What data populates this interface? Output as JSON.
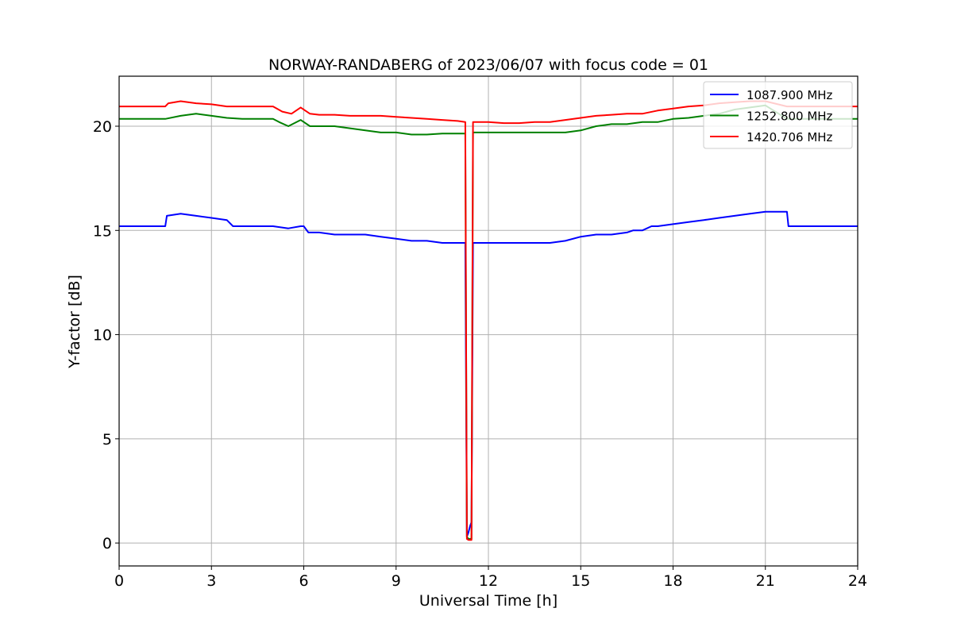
{
  "chart_data": {
    "type": "line",
    "title": "NORWAY-RANDABERG of 2023/06/07 with focus code = 01",
    "xlabel": "Universal Time [h]",
    "ylabel": "Y-factor [dB]",
    "xlim": [
      0,
      24
    ],
    "ylim": [
      -1.1,
      22.4
    ],
    "xticks": [
      0,
      3,
      6,
      9,
      12,
      15,
      18,
      21,
      24
    ],
    "yticks": [
      0,
      5,
      10,
      15,
      20
    ],
    "grid": true,
    "legend_position": "top-right",
    "series": [
      {
        "name": "1087.900 MHz",
        "color": "#0000ff",
        "x": [
          0,
          1.5,
          1.55,
          2.0,
          2.5,
          3.0,
          3.5,
          3.7,
          4.5,
          5.0,
          5.5,
          5.9,
          6.0,
          6.15,
          6.5,
          7.0,
          7.5,
          8.0,
          8.5,
          9.0,
          9.5,
          10.0,
          10.5,
          11.0,
          11.25,
          11.3,
          11.35,
          11.4,
          11.45,
          11.5,
          11.55,
          12.0,
          12.5,
          13.0,
          13.5,
          14.0,
          14.5,
          15.0,
          15.5,
          16.0,
          16.5,
          16.7,
          17.0,
          17.3,
          17.5,
          18.0,
          18.5,
          19.0,
          19.5,
          20.0,
          20.5,
          21.0,
          21.5,
          21.7,
          21.75,
          22.0,
          24
        ],
        "y": [
          15.2,
          15.2,
          15.7,
          15.8,
          15.7,
          15.6,
          15.5,
          15.2,
          15.2,
          15.2,
          15.1,
          15.2,
          15.2,
          14.9,
          14.9,
          14.8,
          14.8,
          14.8,
          14.7,
          14.6,
          14.5,
          14.5,
          14.4,
          14.4,
          14.4,
          0.3,
          0.5,
          0.8,
          1.0,
          14.4,
          14.4,
          14.4,
          14.4,
          14.4,
          14.4,
          14.4,
          14.5,
          14.7,
          14.8,
          14.8,
          14.9,
          15.0,
          15.0,
          15.2,
          15.2,
          15.3,
          15.4,
          15.5,
          15.6,
          15.7,
          15.8,
          15.9,
          15.9,
          15.9,
          15.2,
          15.2,
          15.2
        ]
      },
      {
        "name": "1252.800 MHz",
        "color": "#008000",
        "x": [
          0,
          1.5,
          2.0,
          2.5,
          3.0,
          3.5,
          4.0,
          5.0,
          5.2,
          5.5,
          5.9,
          6.2,
          6.5,
          7.0,
          7.5,
          8.0,
          8.5,
          9.0,
          9.5,
          10.0,
          10.5,
          11.0,
          11.25,
          11.3,
          11.35,
          11.45,
          11.5,
          11.55,
          12.0,
          12.5,
          13.0,
          13.5,
          14.0,
          14.5,
          15.0,
          15.5,
          16.0,
          16.5,
          17.0,
          17.5,
          18.0,
          18.5,
          19.0,
          19.5,
          20.0,
          20.5,
          21.0,
          21.7,
          22.0,
          24
        ],
        "y": [
          20.35,
          20.35,
          20.5,
          20.6,
          20.5,
          20.4,
          20.35,
          20.35,
          20.2,
          20.0,
          20.3,
          20.0,
          20.0,
          20.0,
          19.9,
          19.8,
          19.7,
          19.7,
          19.6,
          19.6,
          19.65,
          19.65,
          19.65,
          0.3,
          0.2,
          0.2,
          19.7,
          19.7,
          19.7,
          19.7,
          19.7,
          19.7,
          19.7,
          19.7,
          19.8,
          20.0,
          20.1,
          20.1,
          20.2,
          20.2,
          20.35,
          20.4,
          20.5,
          20.6,
          20.8,
          20.9,
          21.0,
          20.35,
          20.35,
          20.35
        ]
      },
      {
        "name": "1420.706 MHz",
        "color": "#ff0000",
        "x": [
          0,
          1.5,
          1.6,
          2.0,
          2.5,
          3.0,
          3.5,
          4.0,
          5.0,
          5.3,
          5.6,
          5.9,
          6.2,
          6.5,
          7.0,
          7.5,
          8.0,
          8.5,
          9.0,
          9.5,
          10.0,
          10.5,
          11.0,
          11.25,
          11.3,
          11.35,
          11.45,
          11.5,
          11.55,
          12.0,
          12.5,
          13.0,
          13.5,
          14.0,
          14.5,
          15.0,
          15.5,
          16.0,
          16.5,
          17.0,
          17.5,
          18.0,
          18.5,
          19.0,
          19.5,
          20.0,
          20.5,
          21.0,
          21.7,
          22.0,
          24
        ],
        "y": [
          20.95,
          20.95,
          21.1,
          21.2,
          21.1,
          21.05,
          20.95,
          20.95,
          20.95,
          20.7,
          20.6,
          20.9,
          20.6,
          20.55,
          20.55,
          20.5,
          20.5,
          20.5,
          20.45,
          20.4,
          20.35,
          20.3,
          20.25,
          20.2,
          0.2,
          0.15,
          0.15,
          20.2,
          20.2,
          20.2,
          20.15,
          20.15,
          20.2,
          20.2,
          20.3,
          20.4,
          20.5,
          20.55,
          20.6,
          20.6,
          20.75,
          20.85,
          20.95,
          21.0,
          21.1,
          21.15,
          21.2,
          21.2,
          20.95,
          20.95,
          20.95
        ]
      }
    ]
  }
}
